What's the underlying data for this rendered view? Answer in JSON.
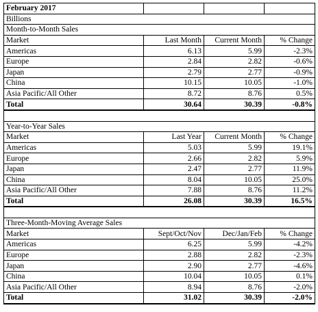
{
  "title": "February 2017",
  "unit": "Billions",
  "sections": [
    {
      "title": "Month-to-Month Sales",
      "headers": [
        "Market",
        "Last Month",
        "Current Month",
        "% Change"
      ],
      "rows": [
        [
          "Americas",
          "6.13",
          "5.99",
          "-2.3%"
        ],
        [
          "Europe",
          "2.84",
          "2.82",
          "-0.6%"
        ],
        [
          "Japan",
          "2.79",
          "2.77",
          "-0.9%"
        ],
        [
          "China",
          "10.15",
          "10.05",
          "-1.0%"
        ],
        [
          "Asia Pacific/All Other",
          "8.72",
          "8.76",
          "0.5%"
        ]
      ],
      "total": [
        "Total",
        "30.64",
        "30.39",
        "-0.8%"
      ]
    },
    {
      "title": "Year-to-Year Sales",
      "headers": [
        "Market",
        "Last Year",
        "Current Month",
        "% Change"
      ],
      "rows": [
        [
          "Americas",
          "5.03",
          "5.99",
          "19.1%"
        ],
        [
          "Europe",
          "2.66",
          "2.82",
          "5.9%"
        ],
        [
          "Japan",
          "2.47",
          "2.77",
          "11.9%"
        ],
        [
          "China",
          "8.04",
          "10.05",
          "25.0%"
        ],
        [
          "Asia Pacific/All Other",
          "7.88",
          "8.76",
          "11.2%"
        ]
      ],
      "total": [
        "Total",
        "26.08",
        "30.39",
        "16.5%"
      ]
    },
    {
      "title": "Three-Month-Moving Average Sales",
      "headers": [
        "Market",
        "Sept/Oct/Nov",
        "Dec/Jan/Feb",
        "% Change"
      ],
      "rows": [
        [
          "Americas",
          "6.25",
          "5.99",
          "-4.2%"
        ],
        [
          "Europe",
          "2.88",
          "2.82",
          "-2.3%"
        ],
        [
          "Japan",
          "2.90",
          "2.77",
          "-4.6%"
        ],
        [
          "China",
          "10.04",
          "10.05",
          "0.1%"
        ],
        [
          "Asia Pacific/All Other",
          "8.94",
          "8.76",
          "-2.0%"
        ]
      ],
      "total": [
        "Total",
        "31.02",
        "30.39",
        "-2.0%"
      ]
    }
  ]
}
